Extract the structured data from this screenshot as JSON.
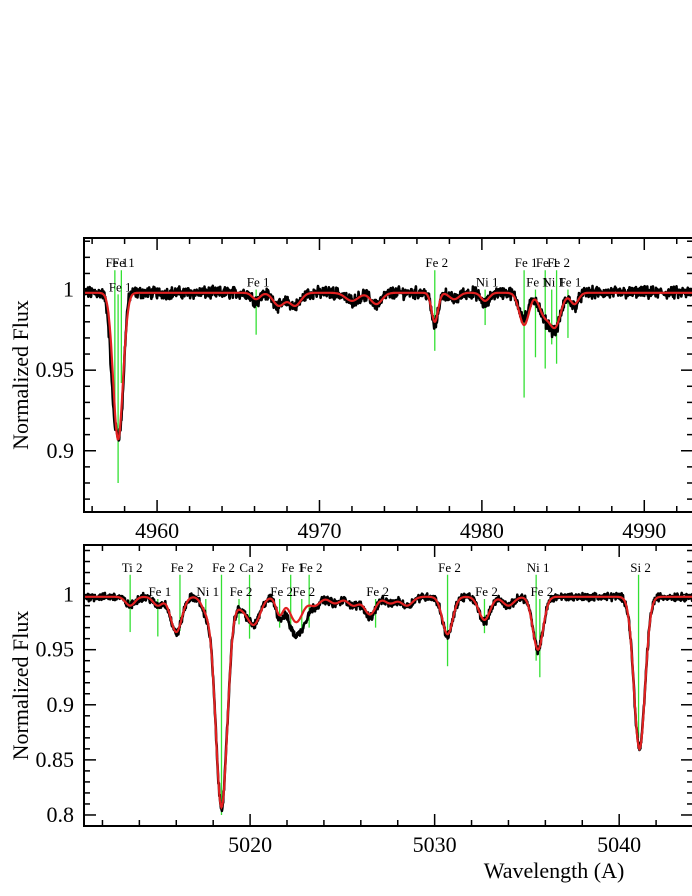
{
  "chart_data": [
    {
      "type": "line",
      "ylabel": "Normalized Flux",
      "xlabel": "",
      "xlim": [
        4955.5,
        4993
      ],
      "ylim": [
        0.862,
        1.032
      ],
      "x_ticks": [
        4960,
        4970,
        4980,
        4990
      ],
      "x_tick_labels": [
        "4960",
        "4970",
        "4980",
        "4990"
      ],
      "y_ticks": [
        0.9,
        0.95,
        1
      ],
      "y_tick_labels": [
        "0.9",
        "0.95",
        "1"
      ],
      "continuum": 0.998,
      "series": [
        {
          "color": "#000000",
          "style": "observed points",
          "absorption": [
            [
              4957.4,
              0.925,
              0.25
            ],
            [
              4957.8,
              0.94,
              0.2
            ],
            [
              4966.1,
              0.993,
              0.25
            ],
            [
              4967.5,
              0.99,
              0.35
            ],
            [
              4968.5,
              0.99,
              0.35
            ],
            [
              4972,
              0.993,
              0.4
            ],
            [
              4973.5,
              0.991,
              0.35
            ],
            [
              4977.1,
              0.978,
              0.2
            ],
            [
              4978.3,
              0.994,
              0.3
            ],
            [
              4980.2,
              0.991,
              0.25
            ],
            [
              4982.6,
              0.982,
              0.3
            ],
            [
              4983.8,
              0.985,
              0.3
            ],
            [
              4984.5,
              0.975,
              0.35
            ],
            [
              4985.7,
              0.99,
              0.25
            ]
          ]
        },
        {
          "color": "#e02020",
          "style": "model line",
          "absorption": [
            [
              4957.6,
              0.907,
              0.3
            ],
            [
              4966.1,
              0.994,
              0.25
            ],
            [
              4967.5,
              0.99,
              0.35
            ],
            [
              4968.5,
              0.99,
              0.35
            ],
            [
              4972,
              0.993,
              0.4
            ],
            [
              4973.5,
              0.991,
              0.35
            ],
            [
              4977.1,
              0.98,
              0.2
            ],
            [
              4978.3,
              0.994,
              0.3
            ],
            [
              4980.2,
              0.993,
              0.25
            ],
            [
              4982.6,
              0.978,
              0.3
            ],
            [
              4983.8,
              0.986,
              0.3
            ],
            [
              4984.5,
              0.977,
              0.35
            ],
            [
              4985.7,
              0.991,
              0.25
            ]
          ]
        }
      ],
      "line_ids": [
        {
          "label": "Fe 1",
          "x": 4957.4,
          "ytop": 1.012,
          "ybottom": 0.923
        },
        {
          "label": "Fe 1",
          "x": 4957.6,
          "ytop": 0.997,
          "ybottom": 0.88
        },
        {
          "label": "Fe 1",
          "x": 4957.8,
          "ytop": 1.012,
          "ybottom": 0.942
        },
        {
          "label": "Fe 1",
          "x": 4966.1,
          "ytop": 1.0,
          "ybottom": 0.972
        },
        {
          "label": "Fe 2",
          "x": 4977.1,
          "ytop": 1.012,
          "ybottom": 0.962
        },
        {
          "label": "Ni 1",
          "x": 4980.2,
          "ytop": 1.0,
          "ybottom": 0.978
        },
        {
          "label": "Fe 1",
          "x": 4982.6,
          "ytop": 1.012,
          "ybottom": 0.933
        },
        {
          "label": "Fe 1",
          "x": 4983.3,
          "ytop": 1.0,
          "ybottom": 0.958
        },
        {
          "label": "Fe 1",
          "x": 4983.9,
          "ytop": 1.012,
          "ybottom": 0.951
        },
        {
          "label": "Ni 1",
          "x": 4984.3,
          "ytop": 1.0,
          "ybottom": 0.966
        },
        {
          "label": "Fe 2",
          "x": 4984.6,
          "ytop": 1.012,
          "ybottom": 0.954
        },
        {
          "label": "Fe 1",
          "x": 4985.3,
          "ytop": 1.0,
          "ybottom": 0.97
        }
      ]
    },
    {
      "type": "line",
      "ylabel": "Normalized Flux",
      "xlabel": "Wavelength (A)",
      "xlim": [
        5011,
        5044
      ],
      "ylim": [
        0.79,
        1.045
      ],
      "x_ticks": [
        5020,
        5030,
        5040
      ],
      "x_tick_labels": [
        "5020",
        "5030",
        "5040"
      ],
      "y_ticks": [
        0.8,
        0.85,
        0.9,
        0.95,
        1
      ],
      "y_tick_labels": [
        "0.8",
        "0.85",
        "0.9",
        "0.95",
        "1"
      ],
      "continuum": 0.998,
      "series": [
        {
          "color": "#000000",
          "style": "observed points",
          "absorption": [
            [
              5013.5,
              0.99,
              0.25
            ],
            [
              5015,
              0.99,
              0.25
            ],
            [
              5016,
              0.965,
              0.3
            ],
            [
              5017.6,
              0.985,
              0.25
            ],
            [
              5018.45,
              0.807,
              0.32
            ],
            [
              5019.5,
              0.99,
              0.3
            ],
            [
              5020.2,
              0.973,
              0.35
            ],
            [
              5021.6,
              0.98,
              0.2
            ],
            [
              5022.3,
              0.972,
              0.3
            ],
            [
              5022.8,
              0.975,
              0.3
            ],
            [
              5023.5,
              0.99,
              0.3
            ],
            [
              5024.6,
              0.992,
              0.3
            ],
            [
              5025.6,
              0.99,
              0.3
            ],
            [
              5026.5,
              0.98,
              0.3
            ],
            [
              5027.6,
              0.992,
              0.3
            ],
            [
              5028.5,
              0.99,
              0.3
            ],
            [
              5030.7,
              0.963,
              0.28
            ],
            [
              5032.7,
              0.976,
              0.3
            ],
            [
              5034,
              0.99,
              0.3
            ],
            [
              5035.6,
              0.95,
              0.28
            ],
            [
              5041.1,
              0.86,
              0.3
            ]
          ]
        },
        {
          "color": "#e02020",
          "style": "model line",
          "absorption": [
            [
              5013.5,
              0.99,
              0.25
            ],
            [
              5015,
              0.99,
              0.25
            ],
            [
              5016,
              0.966,
              0.3
            ],
            [
              5017.6,
              0.987,
              0.25
            ],
            [
              5018.45,
              0.807,
              0.32
            ],
            [
              5019.5,
              0.99,
              0.3
            ],
            [
              5020.2,
              0.973,
              0.35
            ],
            [
              5021.6,
              0.982,
              0.2
            ],
            [
              5022.5,
              0.975,
              0.35
            ],
            [
              5023.5,
              0.99,
              0.3
            ],
            [
              5024.6,
              0.992,
              0.3
            ],
            [
              5025.6,
              0.99,
              0.3
            ],
            [
              5026.5,
              0.982,
              0.3
            ],
            [
              5027.6,
              0.992,
              0.3
            ],
            [
              5028.5,
              0.99,
              0.3
            ],
            [
              5030.7,
              0.964,
              0.28
            ],
            [
              5032.7,
              0.977,
              0.3
            ],
            [
              5034,
              0.99,
              0.3
            ],
            [
              5035.6,
              0.95,
              0.28
            ],
            [
              5041.1,
              0.86,
              0.3
            ]
          ]
        }
      ],
      "line_ids": [
        {
          "label": "Ti 2",
          "x": 5013.5,
          "ytop": 1.018,
          "ybottom": 0.966
        },
        {
          "label": "Fe 1",
          "x": 5015.0,
          "ytop": 0.996,
          "ybottom": 0.962
        },
        {
          "label": "Fe 2",
          "x": 5016.2,
          "ytop": 1.018,
          "ybottom": 0.967
        },
        {
          "label": "Ni 1",
          "x": 5017.6,
          "ytop": 0.996,
          "ybottom": 0.978
        },
        {
          "label": "Fe 2",
          "x": 5018.45,
          "ytop": 1.018,
          "ybottom": 0.8
        },
        {
          "label": "Fe 2",
          "x": 5019.4,
          "ytop": 0.996,
          "ybottom": 0.973
        },
        {
          "label": "Ca 2",
          "x": 5019.97,
          "ytop": 1.018,
          "ybottom": 0.96
        },
        {
          "label": "Fe 2",
          "x": 5021.6,
          "ytop": 0.996,
          "ybottom": 0.97
        },
        {
          "label": "Fe 1",
          "x": 5022.2,
          "ytop": 1.018,
          "ybottom": 0.97
        },
        {
          "label": "Fe 2",
          "x": 5022.8,
          "ytop": 0.996,
          "ybottom": 0.968
        },
        {
          "label": "Fe 2",
          "x": 5023.2,
          "ytop": 1.018,
          "ybottom": 0.97
        },
        {
          "label": "Fe 2",
          "x": 5026.8,
          "ytop": 0.996,
          "ybottom": 0.97
        },
        {
          "label": "Fe 2",
          "x": 5030.7,
          "ytop": 1.018,
          "ybottom": 0.935
        },
        {
          "label": "Fe 2",
          "x": 5032.7,
          "ytop": 0.996,
          "ybottom": 0.965
        },
        {
          "label": "Ni 1",
          "x": 5035.5,
          "ytop": 1.018,
          "ybottom": 0.94
        },
        {
          "label": "Fe 2",
          "x": 5035.7,
          "ytop": 0.996,
          "ybottom": 0.925
        },
        {
          "label": "Si 2",
          "x": 5041.05,
          "ytop": 1.018,
          "ybottom": 0.87
        }
      ]
    }
  ],
  "colors": {
    "observed": "#000000",
    "model": "#e02020",
    "line_marker": "#33e033"
  }
}
